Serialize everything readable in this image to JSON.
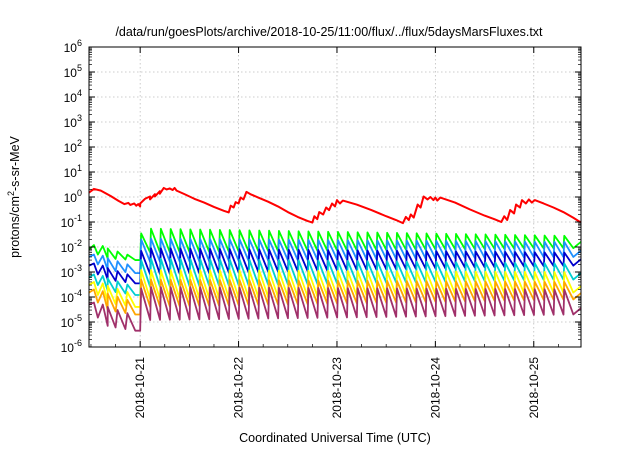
{
  "chart_data": {
    "type": "line",
    "title": "/data/run/goesPlots/archive/2018-10-25/11:00/flux/../flux/5daysMarsFluxes.txt",
    "xlabel": "Coordinated Universal Time (UTC)",
    "ylabel": {
      "prefix": "protons/cm",
      "sup": "2",
      "suffix": "-s-sr-MeV"
    },
    "yscale": "log",
    "ylim_exp": [
      -6,
      6
    ],
    "y_ticks": [
      {
        "base": "10",
        "exp": "-6",
        "value_exp": -6
      },
      {
        "base": "10",
        "exp": "-5",
        "value_exp": -5
      },
      {
        "base": "10",
        "exp": "-4",
        "value_exp": -4
      },
      {
        "base": "10",
        "exp": "-3",
        "value_exp": -3
      },
      {
        "base": "10",
        "exp": "-2",
        "value_exp": -2
      },
      {
        "base": "10",
        "exp": "-1",
        "value_exp": -1
      },
      {
        "base": "10",
        "exp": "0",
        "value_exp": 0
      },
      {
        "base": "10",
        "exp": "1",
        "value_exp": 1
      },
      {
        "base": "10",
        "exp": "2",
        "value_exp": 2
      },
      {
        "base": "10",
        "exp": "3",
        "value_exp": 3
      },
      {
        "base": "10",
        "exp": "4",
        "value_exp": 4
      },
      {
        "base": "10",
        "exp": "5",
        "value_exp": 5
      },
      {
        "base": "10",
        "exp": "6",
        "value_exp": 6
      }
    ],
    "xlim_days": [
      -0.52,
      4.48
    ],
    "x_ticks": [
      {
        "label": "2018-10-21",
        "day": 0
      },
      {
        "label": "2018-10-22",
        "day": 1
      },
      {
        "label": "2018-10-23",
        "day": 2
      },
      {
        "label": "2018-10-24",
        "day": 3
      },
      {
        "label": "2018-10-25",
        "day": 4
      }
    ],
    "grid": true,
    "legend": "none",
    "series": [
      {
        "color": "#ff0000",
        "width": 2.0,
        "points": [
          [
            -0.52,
            1.5
          ],
          [
            -0.47,
            2.1
          ],
          [
            -0.4,
            1.8
          ],
          [
            -0.3,
            1.1
          ],
          [
            -0.22,
            0.7
          ],
          [
            -0.16,
            0.52
          ],
          [
            -0.12,
            0.58
          ],
          [
            -0.1,
            0.48
          ],
          [
            -0.06,
            0.55
          ],
          [
            -0.04,
            0.45
          ],
          [
            -0.02,
            0.52
          ],
          [
            0.0,
            0.42
          ],
          [
            0.0,
            0.55
          ],
          [
            0.05,
            0.85
          ],
          [
            0.1,
            1.05
          ],
          [
            0.1,
            0.8
          ],
          [
            0.15,
            1.3
          ],
          [
            0.15,
            1.05
          ],
          [
            0.2,
            1.7
          ],
          [
            0.2,
            1.35
          ],
          [
            0.24,
            2.3
          ],
          [
            0.27,
            2.0
          ],
          [
            0.3,
            2.2
          ],
          [
            0.33,
            1.9
          ],
          [
            0.35,
            2.3
          ],
          [
            0.37,
            1.8
          ],
          [
            0.45,
            1.3
          ],
          [
            0.55,
            0.85
          ],
          [
            0.65,
            0.6
          ],
          [
            0.75,
            0.4
          ],
          [
            0.85,
            0.28
          ],
          [
            0.9,
            0.24
          ],
          [
            0.92,
            0.45
          ],
          [
            0.95,
            0.38
          ],
          [
            0.97,
            0.62
          ],
          [
            1.0,
            0.55
          ],
          [
            1.02,
            0.95
          ],
          [
            1.05,
            0.8
          ],
          [
            1.08,
            1.6
          ],
          [
            1.12,
            1.3
          ],
          [
            1.2,
            0.95
          ],
          [
            1.3,
            0.65
          ],
          [
            1.4,
            0.42
          ],
          [
            1.5,
            0.25
          ],
          [
            1.6,
            0.16
          ],
          [
            1.7,
            0.11
          ],
          [
            1.75,
            0.095
          ],
          [
            1.77,
            0.17
          ],
          [
            1.8,
            0.13
          ],
          [
            1.82,
            0.25
          ],
          [
            1.86,
            0.2
          ],
          [
            1.89,
            0.38
          ],
          [
            1.92,
            0.3
          ],
          [
            1.95,
            0.55
          ],
          [
            1.98,
            0.42
          ],
          [
            2.0,
            0.75
          ],
          [
            2.03,
            0.55
          ],
          [
            2.06,
            0.72
          ],
          [
            2.2,
            0.5
          ],
          [
            2.35,
            0.3
          ],
          [
            2.5,
            0.17
          ],
          [
            2.6,
            0.12
          ],
          [
            2.67,
            0.09
          ],
          [
            2.7,
            0.16
          ],
          [
            2.73,
            0.12
          ],
          [
            2.75,
            0.2
          ],
          [
            2.78,
            0.15
          ],
          [
            2.82,
            0.5
          ],
          [
            2.85,
            0.38
          ],
          [
            2.88,
            1.05
          ],
          [
            2.92,
            0.8
          ],
          [
            2.95,
            1.0
          ],
          [
            2.98,
            0.75
          ],
          [
            3.0,
            0.95
          ],
          [
            3.02,
            0.72
          ],
          [
            3.05,
            0.95
          ],
          [
            3.2,
            0.6
          ],
          [
            3.35,
            0.32
          ],
          [
            3.5,
            0.18
          ],
          [
            3.6,
            0.13
          ],
          [
            3.67,
            0.1
          ],
          [
            3.7,
            0.17
          ],
          [
            3.73,
            0.12
          ],
          [
            3.76,
            0.3
          ],
          [
            3.8,
            0.22
          ],
          [
            3.82,
            0.5
          ],
          [
            3.86,
            0.38
          ],
          [
            3.88,
            0.75
          ],
          [
            3.92,
            0.55
          ],
          [
            3.95,
            0.8
          ],
          [
            3.98,
            0.6
          ],
          [
            4.01,
            0.75
          ],
          [
            4.1,
            0.55
          ],
          [
            4.2,
            0.38
          ],
          [
            4.3,
            0.25
          ],
          [
            4.4,
            0.15
          ],
          [
            4.48,
            0.095
          ]
        ]
      },
      {
        "color": "#00ff00",
        "width": 1.8,
        "start": [
          -0.52,
          0.008
        ],
        "pre_peaks": [
          [
            -0.47,
            0.012
          ],
          [
            -0.38,
            0.011
          ]
        ],
        "jump_day": 0.0,
        "teeth_start": -0.34,
        "teeth_end": 4.48,
        "teeth_period": 0.1,
        "tooth_low": 0.006,
        "tooth_high_start": 0.055,
        "tooth_high_end": 0.028,
        "tooth_low_end": 0.009,
        "pre_low": [
          0.005,
          0.0035,
          0.003
        ],
        "post_jump_high": 0.035
      },
      {
        "color": "#1e90ff",
        "width": 1.8,
        "start": [
          -0.52,
          0.004
        ],
        "pre_peaks": [
          [
            -0.47,
            0.005
          ],
          [
            -0.38,
            0.0045
          ]
        ],
        "jump_day": 0.0,
        "teeth_start": -0.34,
        "teeth_end": 4.48,
        "teeth_period": 0.1,
        "tooth_low": 0.0025,
        "tooth_high_start": 0.022,
        "tooth_high_end": 0.016,
        "tooth_low_end": 0.004,
        "pre_low": [
          0.002,
          0.0012,
          0.0009
        ],
        "post_jump_high": 0.02
      },
      {
        "color": "#0000cd",
        "width": 1.8,
        "start": [
          -0.52,
          0.0018
        ],
        "pre_peaks": [
          [
            -0.47,
            0.0022
          ],
          [
            -0.38,
            0.0018
          ]
        ],
        "jump_day": 0.0,
        "teeth_start": -0.34,
        "teeth_end": 4.48,
        "teeth_period": 0.1,
        "tooth_low": 0.0008,
        "tooth_high_start": 0.009,
        "tooth_high_end": 0.006,
        "tooth_low_end": 0.0018,
        "pre_low": [
          0.0008,
          0.0005,
          0.00035
        ],
        "post_jump_high": 0.007
      },
      {
        "color": "#00ced1",
        "width": 1.8,
        "start": [
          -0.52,
          0.0006
        ],
        "pre_peaks": [
          [
            -0.47,
            0.0008
          ],
          [
            -0.38,
            0.0007
          ]
        ],
        "jump_day": 0.0,
        "teeth_start": -0.34,
        "teeth_end": 4.48,
        "teeth_period": 0.1,
        "tooth_low": 0.00025,
        "tooth_high_start": 0.0035,
        "tooth_high_end": 0.0022,
        "tooth_low_end": 0.0005,
        "pre_low": [
          0.0003,
          0.00018,
          0.00012
        ],
        "post_jump_high": 0.003
      },
      {
        "color": "#ffff00",
        "width": 1.8,
        "start": [
          -0.52,
          0.0003
        ],
        "pre_peaks": [
          [
            -0.47,
            0.0004
          ],
          [
            -0.38,
            0.00035
          ]
        ],
        "jump_day": 0.0,
        "teeth_start": -0.34,
        "teeth_end": 4.48,
        "teeth_period": 0.1,
        "tooth_low": 8e-05,
        "tooth_high_start": 0.0012,
        "tooth_high_end": 0.001,
        "tooth_low_end": 0.00015,
        "pre_low": [
          0.00012,
          6e-05,
          4e-05
        ],
        "post_jump_high": 0.0012
      },
      {
        "color": "#ffa500",
        "width": 1.8,
        "start": [
          -0.52,
          0.00015
        ],
        "pre_peaks": [
          [
            -0.47,
            0.0002
          ],
          [
            -0.38,
            0.00017
          ]
        ],
        "jump_day": 0.0,
        "teeth_start": -0.34,
        "teeth_end": 4.48,
        "teeth_period": 0.1,
        "tooth_low": 4e-05,
        "tooth_high_start": 0.0005,
        "tooth_high_end": 0.0004,
        "tooth_low_end": 8e-05,
        "pre_low": [
          6e-05,
          3e-05,
          2e-05
        ],
        "post_jump_high": 0.0005
      },
      {
        "color": "#a0306a",
        "width": 1.8,
        "start": [
          -0.52,
          5e-05
        ],
        "pre_peaks": [
          [
            -0.47,
            6e-05
          ],
          [
            -0.38,
            5e-05
          ]
        ],
        "jump_day": 0.0,
        "teeth_start": -0.34,
        "teeth_end": 4.48,
        "teeth_period": 0.1,
        "tooth_low": 1.2e-05,
        "tooth_high_start": 0.00025,
        "tooth_high_end": 0.0002,
        "tooth_low_end": 2e-05,
        "pre_low": [
          1.5e-05,
          7e-06,
          4.5e-06
        ],
        "post_jump_high": 0.00022
      }
    ]
  }
}
